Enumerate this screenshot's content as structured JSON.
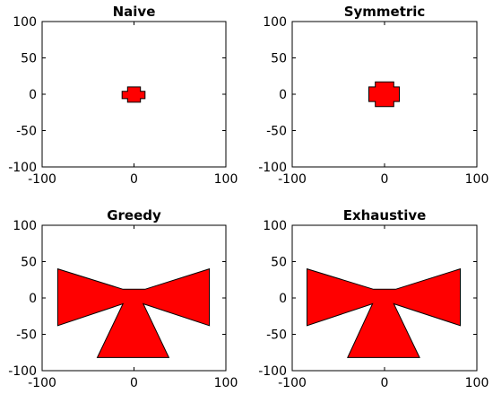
{
  "chart_data": [
    {
      "type": "area",
      "title": "Naive",
      "xlim": [
        -100,
        100
      ],
      "ylim": [
        -100,
        100
      ],
      "xticks": [
        -100,
        0,
        100
      ],
      "yticks": [
        -100,
        -50,
        0,
        50,
        100
      ],
      "grid": false,
      "fill_color": "#ff0000",
      "edge_color": "#000000",
      "polygons": [
        [
          [
            -7,
            10
          ],
          [
            7,
            10
          ],
          [
            7,
            4
          ],
          [
            12,
            4
          ],
          [
            12,
            -6
          ],
          [
            7,
            -6
          ],
          [
            7,
            -11
          ],
          [
            -7,
            -11
          ],
          [
            -7,
            -6
          ],
          [
            -13,
            -6
          ],
          [
            -13,
            4
          ],
          [
            -7,
            4
          ]
        ]
      ]
    },
    {
      "type": "area",
      "title": "Symmetric",
      "xlim": [
        -100,
        100
      ],
      "ylim": [
        -100,
        100
      ],
      "xticks": [
        -100,
        0,
        100
      ],
      "yticks": [
        -100,
        -50,
        0,
        50,
        100
      ],
      "grid": false,
      "fill_color": "#ff0000",
      "edge_color": "#000000",
      "polygons": [
        [
          [
            -10,
            17
          ],
          [
            10,
            17
          ],
          [
            10,
            10
          ],
          [
            16,
            10
          ],
          [
            16,
            -10
          ],
          [
            10,
            -10
          ],
          [
            10,
            -17
          ],
          [
            -10,
            -17
          ],
          [
            -10,
            -10
          ],
          [
            -17,
            -10
          ],
          [
            -17,
            10
          ],
          [
            -10,
            10
          ]
        ]
      ]
    },
    {
      "type": "area",
      "title": "Greedy",
      "xlim": [
        -100,
        100
      ],
      "ylim": [
        -100,
        100
      ],
      "xticks": [
        -100,
        0,
        100
      ],
      "yticks": [
        -100,
        -50,
        0,
        50,
        100
      ],
      "grid": false,
      "fill_color": "#ff0000",
      "edge_color": "#000000",
      "polygons": [
        [
          [
            -83,
            40
          ],
          [
            -83,
            -38
          ],
          [
            -12,
            -8
          ],
          [
            -40,
            -82
          ],
          [
            38,
            -82
          ],
          [
            10,
            -8
          ],
          [
            82,
            -38
          ],
          [
            82,
            40
          ],
          [
            12,
            12
          ],
          [
            -12,
            12
          ]
        ]
      ]
    },
    {
      "type": "area",
      "title": "Exhaustive",
      "xlim": [
        -100,
        100
      ],
      "ylim": [
        -100,
        100
      ],
      "xticks": [
        -100,
        0,
        100
      ],
      "yticks": [
        -100,
        -50,
        0,
        50,
        100
      ],
      "grid": false,
      "fill_color": "#ff0000",
      "edge_color": "#000000",
      "polygons": [
        [
          [
            -84,
            40
          ],
          [
            -84,
            -38
          ],
          [
            -13,
            -8
          ],
          [
            -40,
            -82
          ],
          [
            38,
            -82
          ],
          [
            10,
            -8
          ],
          [
            82,
            -38
          ],
          [
            82,
            40
          ],
          [
            12,
            12
          ],
          [
            -12,
            12
          ]
        ]
      ]
    }
  ]
}
